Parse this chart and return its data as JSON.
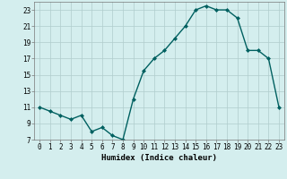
{
  "x": [
    0,
    1,
    2,
    3,
    4,
    5,
    6,
    7,
    8,
    9,
    10,
    11,
    12,
    13,
    14,
    15,
    16,
    17,
    18,
    19,
    20,
    21,
    22,
    23
  ],
  "y": [
    11,
    10.5,
    10,
    9.5,
    10,
    8,
    8.5,
    7.5,
    7,
    12,
    15.5,
    17,
    18,
    19.5,
    21,
    23,
    23.5,
    23,
    23,
    22,
    18,
    18,
    17,
    11
  ],
  "line_color": "#006060",
  "marker": "D",
  "marker_size": 2.0,
  "bg_color": "#d4eeee",
  "grid_color": "#b0cccc",
  "xlabel": "Humidex (Indice chaleur)",
  "xlim": [
    -0.5,
    23.5
  ],
  "ylim": [
    7,
    24
  ],
  "xticks": [
    0,
    1,
    2,
    3,
    4,
    5,
    6,
    7,
    8,
    9,
    10,
    11,
    12,
    13,
    14,
    15,
    16,
    17,
    18,
    19,
    20,
    21,
    22,
    23
  ],
  "yticks": [
    7,
    9,
    11,
    13,
    15,
    17,
    19,
    21,
    23
  ],
  "tick_fontsize": 5.5,
  "xlabel_fontsize": 6.5,
  "line_width": 1.0
}
